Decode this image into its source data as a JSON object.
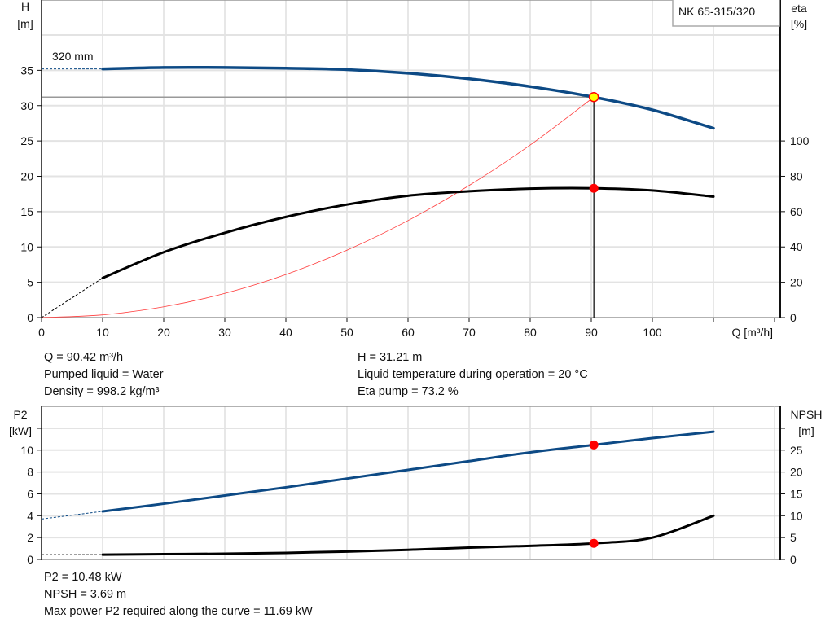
{
  "model_label": "NK 65-315/320",
  "impeller_label": "320 mm",
  "info_top_left": [
    "Q = 90.42 m³/h",
    "Pumped liquid = Water",
    "Density = 998.2 kg/m³"
  ],
  "info_top_right": [
    "H = 31.21 m",
    "Liquid temperature during operation = 20 °C",
    "Eta pump = 73.2 %"
  ],
  "info_bottom": [
    "P2 = 10.48 kW",
    "NPSH = 3.69 m",
    "Max power P2 required along the curve = 11.69 kW"
  ],
  "colors": {
    "head": "#0d4a85",
    "eta": "#000000",
    "system": "#ff3b3b",
    "p2": "#0d4a85",
    "npsh": "#000000",
    "duty_point": "#ff0000",
    "duty_fill": "#ffff00"
  },
  "chart_data": [
    {
      "type": "line",
      "xlabel": "Q [m³/h]",
      "ylabel_lines": [
        "H",
        "[m]"
      ],
      "y2label_lines": [
        "eta",
        "[%]"
      ],
      "xlim": [
        0,
        120
      ],
      "ylim": [
        0,
        45
      ],
      "y2lim": [
        0,
        180
      ],
      "xticks": [
        "0",
        "10",
        "20",
        "30",
        "40",
        "50",
        "60",
        "70",
        "80",
        "90",
        "100"
      ],
      "yticks": [
        "0",
        "5",
        "10",
        "15",
        "20",
        "25",
        "30",
        "35"
      ],
      "y2ticks": [
        "0",
        "20",
        "40",
        "60",
        "80",
        "100"
      ],
      "grid": true,
      "series": [
        {
          "name": "320 mm",
          "axis": "left",
          "x": [
            10,
            20,
            30,
            40,
            50,
            60,
            70,
            80,
            90.42,
            100,
            110
          ],
          "y": [
            35.2,
            35.4,
            35.4,
            35.3,
            35.1,
            34.6,
            33.8,
            32.7,
            31.21,
            29.4,
            26.8
          ],
          "extrapolated": {
            "x": [
              0,
              10
            ],
            "y": [
              35.2,
              35.2
            ]
          }
        },
        {
          "axis": "right",
          "x": [
            10,
            20,
            30,
            40,
            50,
            60,
            70,
            80,
            90.42,
            100,
            110
          ],
          "y": [
            22.4,
            37,
            48,
            57,
            64,
            69,
            71.5,
            73,
            73.2,
            72,
            68.5
          ],
          "extrapolated": {
            "x": [
              0,
              10
            ],
            "y": [
              0,
              22.4
            ]
          }
        },
        {
          "axis": "left",
          "x": [
            0,
            10,
            20,
            30,
            40,
            50,
            60,
            70,
            80,
            90.42
          ],
          "y": [
            0,
            0.38,
            1.53,
            3.43,
            6.1,
            9.54,
            13.74,
            18.7,
            24.43,
            31.21
          ]
        }
      ],
      "duty_point": {
        "Q": 90.42,
        "H": 31.21,
        "eta": 73.2
      }
    },
    {
      "type": "line",
      "ylabel_lines": [
        "P2",
        "[kW]"
      ],
      "y2label_lines": [
        "NPSH",
        "[m]"
      ],
      "xlim": [
        0,
        120
      ],
      "ylim": [
        0,
        14
      ],
      "y2lim": [
        0,
        35
      ],
      "yticks": [
        "0",
        "2",
        "4",
        "6",
        "8",
        "10"
      ],
      "y2ticks": [
        "0",
        "5",
        "10",
        "15",
        "20",
        "25"
      ],
      "grid": true,
      "series": [
        {
          "axis": "left",
          "x": [
            10,
            20,
            30,
            40,
            50,
            60,
            70,
            80,
            90.42,
            100,
            110
          ],
          "y": [
            4.4,
            5.1,
            5.85,
            6.6,
            7.4,
            8.2,
            9.0,
            9.8,
            10.48,
            11.1,
            11.69
          ],
          "extrapolated": {
            "x": [
              0,
              10
            ],
            "y": [
              3.7,
              4.4
            ]
          }
        },
        {
          "axis": "right",
          "x": [
            10,
            20,
            30,
            40,
            50,
            60,
            70,
            80,
            90.42,
            100,
            110
          ],
          "y": [
            1.1,
            1.2,
            1.3,
            1.5,
            1.8,
            2.2,
            2.7,
            3.1,
            3.69,
            5.0,
            10.0
          ],
          "extrapolated": {
            "x": [
              0,
              10
            ],
            "y": [
              1.1,
              1.1
            ]
          }
        }
      ],
      "duty_point": {
        "Q": 90.42,
        "P2": 10.48,
        "NPSH": 3.69
      }
    }
  ]
}
